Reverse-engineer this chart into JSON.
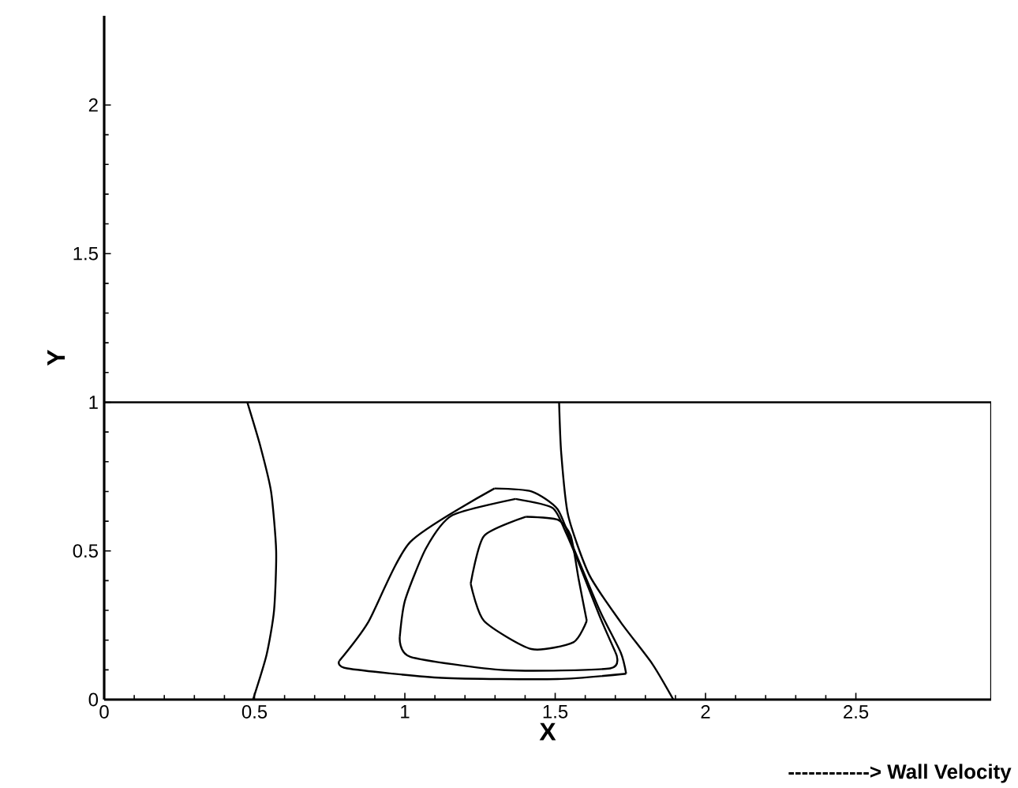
{
  "chart_data": {
    "type": "line",
    "xlabel": "X",
    "ylabel": "Y",
    "xlim": [
      0,
      2.95
    ],
    "ylim": [
      0,
      2.3
    ],
    "xticks": [
      0,
      0.5,
      1,
      1.5,
      2,
      2.5
    ],
    "yticks": [
      0,
      0.5,
      1,
      1.5,
      2
    ],
    "grid": false,
    "marker": "none",
    "line_style": "solid",
    "annotations": [
      "------------> Wall Velocity"
    ],
    "series": [
      {
        "color": "#000000",
        "x": [
          0,
          2.95
        ],
        "values": [
          1,
          1
        ]
      },
      {
        "color": "#000000",
        "x": [
          2.95,
          2.95
        ],
        "values": [
          1,
          0
        ]
      },
      {
        "color": "#000000",
        "x": [
          0.476,
          0.52,
          0.555,
          0.572,
          0.565,
          0.54,
          0.495
        ],
        "values": [
          1,
          0.85,
          0.7,
          0.5,
          0.3,
          0.15,
          0
        ]
      },
      {
        "color": "#000000",
        "x": [
          1.513,
          1.52,
          1.543,
          1.613,
          1.718,
          1.823,
          1.893
        ],
        "values": [
          1,
          0.83,
          0.62,
          0.42,
          0.26,
          0.12,
          0
        ]
      },
      {
        "color": "#000000",
        "x": [
          1.298,
          1.018,
          0.878,
          0.782
        ],
        "values": [
          0.71,
          0.53,
          0.26,
          0.13
        ]
      },
      {
        "color": "#000000",
        "x": [
          0.782,
          0.808,
          1.123,
          1.508,
          1.736
        ],
        "values": [
          0.13,
          0.105,
          0.073,
          0.069,
          0.087
        ]
      },
      {
        "color": "#000000",
        "x": [
          1.736,
          1.718,
          1.648,
          1.561,
          1.508,
          1.421,
          1.298
        ],
        "values": [
          0.087,
          0.158,
          0.3,
          0.51,
          0.64,
          0.7,
          0.71
        ]
      },
      {
        "color": "#000000",
        "x": [
          1.368,
          1.158,
          1.071,
          1.001,
          0.983
        ],
        "values": [
          0.675,
          0.62,
          0.51,
          0.335,
          0.21
        ]
      },
      {
        "color": "#000000",
        "x": [
          0.983,
          1.018,
          1.333,
          1.683,
          1.7
        ],
        "values": [
          0.21,
          0.144,
          0.099,
          0.105,
          0.16
        ]
      },
      {
        "color": "#000000",
        "x": [
          1.7,
          1.648,
          1.578,
          1.534,
          1.491,
          1.368
        ],
        "values": [
          0.16,
          0.28,
          0.46,
          0.565,
          0.645,
          0.675
        ]
      },
      {
        "color": "#000000",
        "x": [
          1.403,
          1.263,
          1.219
        ],
        "values": [
          0.615,
          0.55,
          0.39
        ]
      },
      {
        "color": "#000000",
        "x": [
          1.219,
          1.263,
          1.421,
          1.561,
          1.605
        ],
        "values": [
          0.39,
          0.265,
          0.17,
          0.193,
          0.265
        ]
      },
      {
        "color": "#000000",
        "x": [
          1.605,
          1.578,
          1.552,
          1.508,
          1.403
        ],
        "values": [
          0.265,
          0.405,
          0.55,
          0.605,
          0.615
        ]
      }
    ]
  }
}
